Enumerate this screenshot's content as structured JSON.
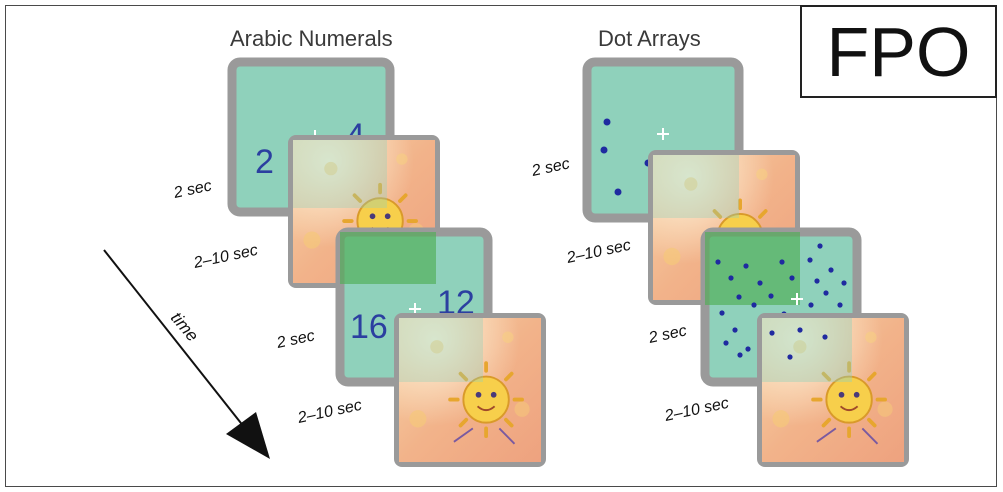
{
  "titles": {
    "left": "Arabic Numerals",
    "right": "Dot Arrays"
  },
  "fpo": "FPO",
  "time_label": "time",
  "left_column": {
    "labels": [
      "2 sec",
      "2–10 sec",
      "2 sec",
      "2–10 sec"
    ],
    "trial1_numbers": [
      "2",
      "4"
    ],
    "trial2_numbers": [
      "16",
      "12"
    ]
  },
  "right_column": {
    "labels": [
      "2 sec",
      "2–10 sec",
      "2 sec",
      "2–10 sec"
    ]
  },
  "colors": {
    "stimulus_fill": "#8fd1bb",
    "screen_border": "#9a9a9a",
    "numeral_color": "#2b3fa0",
    "dot_color": "#1f2aa0",
    "distractor_fill": "#f0b88c"
  },
  "icons": {
    "fixation": "fixation-cross-icon",
    "distractor": "cartoon-sun-icon",
    "arrow": "arrow-down-right-icon"
  }
}
